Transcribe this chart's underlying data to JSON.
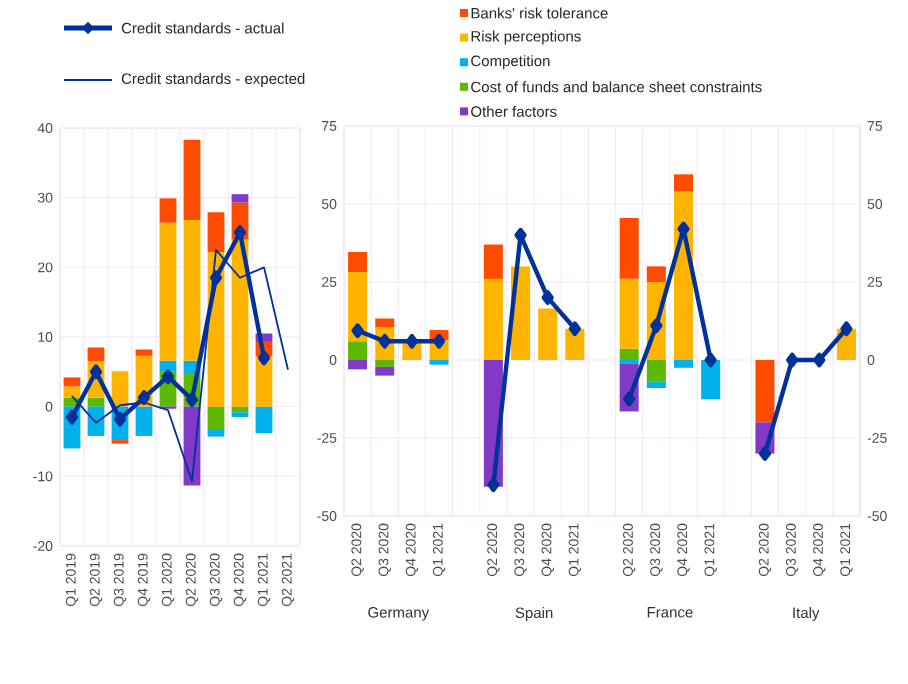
{
  "chart_data": [
    {
      "type": "bar",
      "stacked": true,
      "legend": "top",
      "grid": true,
      "categories": [
        "Q1 2019",
        "Q2 2019",
        "Q3 2019",
        "Q4 2019",
        "Q1 2020",
        "Q2 2020",
        "Q3 2020",
        "Q4 2020",
        "Q1 2021",
        "Q2 2021"
      ],
      "ylim": [
        -20,
        40
      ],
      "yticks": [
        -20,
        -10,
        0,
        10,
        20,
        30,
        40
      ],
      "series": [
        {
          "name": "Cost of funds and balance sheet constraints",
          "color": "#5cb800",
          "values": [
            1.3,
            1.3,
            null,
            null,
            5.0,
            4.7,
            -3.2,
            -0.8,
            null,
            null
          ]
        },
        {
          "name": "Competition",
          "color": "#00b1ea",
          "values": [
            -6.0,
            -4.2,
            -4.8,
            -4.2,
            1.6,
            1.9,
            -1.1,
            -0.7,
            -3.8,
            null
          ]
        },
        {
          "name": "Risk perceptions",
          "color": "#ffb400",
          "values": [
            1.6,
            5.2,
            5.1,
            7.3,
            19.8,
            20.2,
            22.2,
            24.0,
            7.2,
            null
          ]
        },
        {
          "name": "Banks' risk tolerance",
          "color": "#ff4b00",
          "values": [
            1.3,
            2.0,
            -0.5,
            0.9,
            3.5,
            11.5,
            5.7,
            5.3,
            2.1,
            null
          ]
        },
        {
          "name": "Other factors",
          "color": "#8139c6",
          "values": [
            null,
            null,
            null,
            null,
            -0.3,
            -11.3,
            null,
            1.2,
            1.2,
            null
          ]
        },
        {
          "name": "Credit standards - expected",
          "type": "line",
          "marker": "none",
          "color": "#003299",
          "values": [
            1.5,
            -2.3,
            0.2,
            0.6,
            -0.5,
            -10.7,
            22.5,
            18.5,
            20.0,
            5.3
          ]
        },
        {
          "name": "Credit standards - actual",
          "type": "line",
          "marker": "diamond",
          "color": "#003299",
          "values": [
            -1.5,
            5.0,
            -1.8,
            1.3,
            4.3,
            1.0,
            18.5,
            25.0,
            7.0,
            null
          ]
        }
      ]
    },
    {
      "type": "bar",
      "stacked": true,
      "grid": true,
      "categories": [
        "Q2 2020",
        "Q3 2020",
        "Q4 2020",
        "Q1 2021",
        null,
        "Q2 2020",
        "Q3 2020",
        "Q4 2020",
        "Q1 2021",
        null,
        "Q2 2020",
        "Q3 2020",
        "Q4 2020",
        "Q1 2021",
        null,
        "Q2 2020",
        "Q3 2020",
        "Q4 2020",
        "Q1 2021"
      ],
      "ylim": [
        -50,
        75
      ],
      "yticks": [
        -50,
        -25,
        0,
        25,
        50,
        75
      ],
      "y2lim": [
        -50,
        75
      ],
      "y2ticks": [
        -50,
        -25,
        0,
        25,
        50,
        75
      ],
      "annotations": [
        "Germany",
        "Spain",
        "France",
        "Italy"
      ],
      "series": [
        {
          "color": "#5cb800",
          "values": [
            6.0,
            -2.2,
            null,
            null,
            null,
            null,
            null,
            null,
            null,
            null,
            3.6,
            -7.0,
            null,
            null,
            null,
            null,
            null,
            null,
            null
          ]
        },
        {
          "color": "#00b1ea",
          "values": [
            null,
            null,
            null,
            -1.5,
            null,
            null,
            null,
            null,
            null,
            null,
            -1.1,
            -2.0,
            -2.5,
            -12.6,
            null,
            null,
            null,
            null,
            null
          ]
        },
        {
          "color": "#ffb400",
          "values": [
            22.2,
            10.5,
            6.0,
            6.4,
            null,
            26.0,
            30.0,
            16.5,
            10.0,
            null,
            22.4,
            25.0,
            54.0,
            null,
            null,
            null,
            null,
            null,
            10.0
          ]
        },
        {
          "color": "#ff4b00",
          "values": [
            6.4,
            2.8,
            null,
            3.2,
            null,
            11.0,
            null,
            null,
            null,
            null,
            19.5,
            5.0,
            5.5,
            null,
            null,
            -20.0,
            null,
            null,
            null
          ]
        },
        {
          "color": "#8139c6",
          "values": [
            -3.0,
            -2.8,
            null,
            null,
            null,
            -40.6,
            null,
            null,
            null,
            null,
            -15.4,
            null,
            null,
            null,
            null,
            -10.0,
            null,
            null,
            null
          ]
        },
        {
          "type": "line",
          "marker": "diamond",
          "color": "#003299",
          "values": [
            9.4,
            6.0,
            6.0,
            6.0,
            null,
            -40.0,
            40.0,
            20.0,
            10.0,
            null,
            -12.5,
            11.0,
            42.0,
            0.0,
            null,
            -30.0,
            0.0,
            0.0,
            10.0
          ]
        }
      ]
    }
  ]
}
